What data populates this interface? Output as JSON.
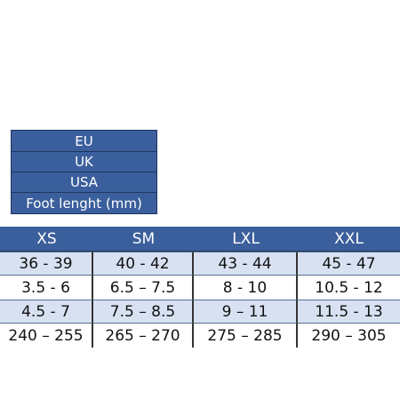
{
  "side_header": {
    "rows": [
      "EU",
      "UK",
      "USA",
      "Foot lenght (mm)"
    ]
  },
  "table": {
    "columns": [
      "XS",
      "SM",
      "LXL",
      "XXL"
    ],
    "rows": [
      [
        "36 - 39",
        "40 - 42",
        "43 - 44",
        "45 - 47"
      ],
      [
        "3.5 - 6",
        "6.5 – 7.5",
        "8 - 10",
        "10.5 - 12"
      ],
      [
        "4.5 - 7",
        "7.5 – 8.5",
        "9 – 11",
        "11.5 - 13"
      ],
      [
        "240 – 255",
        "265 – 270",
        "275 – 285",
        "290 – 305"
      ]
    ]
  }
}
